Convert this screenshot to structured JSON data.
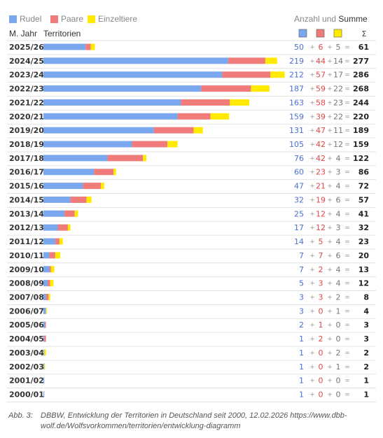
{
  "chart_data": {
    "type": "bar",
    "stacked": true,
    "orientation": "horizontal",
    "legend": {
      "position": "top-left",
      "items": [
        {
          "name": "Rudel",
          "color": "#7BA7EE"
        },
        {
          "name": "Paare",
          "color": "#F07B7B"
        },
        {
          "name": "Einzeltiere",
          "color": "#FFEA00"
        }
      ]
    },
    "header": {
      "col_year": "M. Jahr",
      "col_territories": "Territorien",
      "right_title_a": "Anzahl und",
      "right_title_b": "Summe",
      "sum_symbol": "Σ"
    },
    "operators": {
      "plus": "+",
      "equals": "="
    },
    "categories": [
      "2025/26",
      "2024/25",
      "2023/24",
      "2022/23",
      "2021/22",
      "2020/21",
      "2019/20",
      "2018/19",
      "2017/18",
      "2016/17",
      "2015/16",
      "2014/15",
      "2013/14",
      "2012/13",
      "2011/12",
      "2010/11",
      "2009/10",
      "2008/09",
      "2007/08",
      "2006/07",
      "2005/06",
      "2004/05",
      "2003/04",
      "2002/03",
      "2001/02",
      "2000/01"
    ],
    "series": [
      {
        "name": "Rudel",
        "values": [
          50,
          219,
          212,
          187,
          163,
          159,
          131,
          105,
          76,
          60,
          47,
          32,
          25,
          17,
          14,
          7,
          7,
          5,
          3,
          3,
          2,
          1,
          1,
          1,
          1,
          1
        ]
      },
      {
        "name": "Paare",
        "values": [
          6,
          44,
          57,
          59,
          58,
          39,
          47,
          42,
          42,
          23,
          21,
          19,
          12,
          12,
          5,
          7,
          2,
          3,
          3,
          0,
          1,
          2,
          0,
          0,
          0,
          0
        ]
      },
      {
        "name": "Einzeltiere",
        "values": [
          5,
          14,
          17,
          22,
          23,
          22,
          11,
          12,
          4,
          3,
          4,
          6,
          4,
          3,
          4,
          6,
          4,
          4,
          2,
          1,
          0,
          0,
          2,
          1,
          0,
          0
        ]
      }
    ],
    "totals": [
      61,
      277,
      286,
      268,
      244,
      220,
      189,
      159,
      122,
      86,
      72,
      57,
      41,
      32,
      23,
      20,
      13,
      12,
      8,
      4,
      3,
      3,
      2,
      2,
      1,
      1
    ],
    "colors": {
      "rudel": "#7BA7EE",
      "paare": "#F07B7B",
      "einzel": "#FFEA00",
      "rudel_text": "#4A6FD4",
      "paare_text": "#E04848",
      "einzel_text": "#777777",
      "total_text": "#222222",
      "grid": "#DDDDDD"
    }
  },
  "caption": {
    "label": "Abb. 3:",
    "text": "DBBW, Entwicklung der Territorien in Deutschland seit 2000, 12.02.2026 https://www.dbb-wolf.de/Wolfsvorkommen/territorien/entwicklung-diagramm"
  }
}
